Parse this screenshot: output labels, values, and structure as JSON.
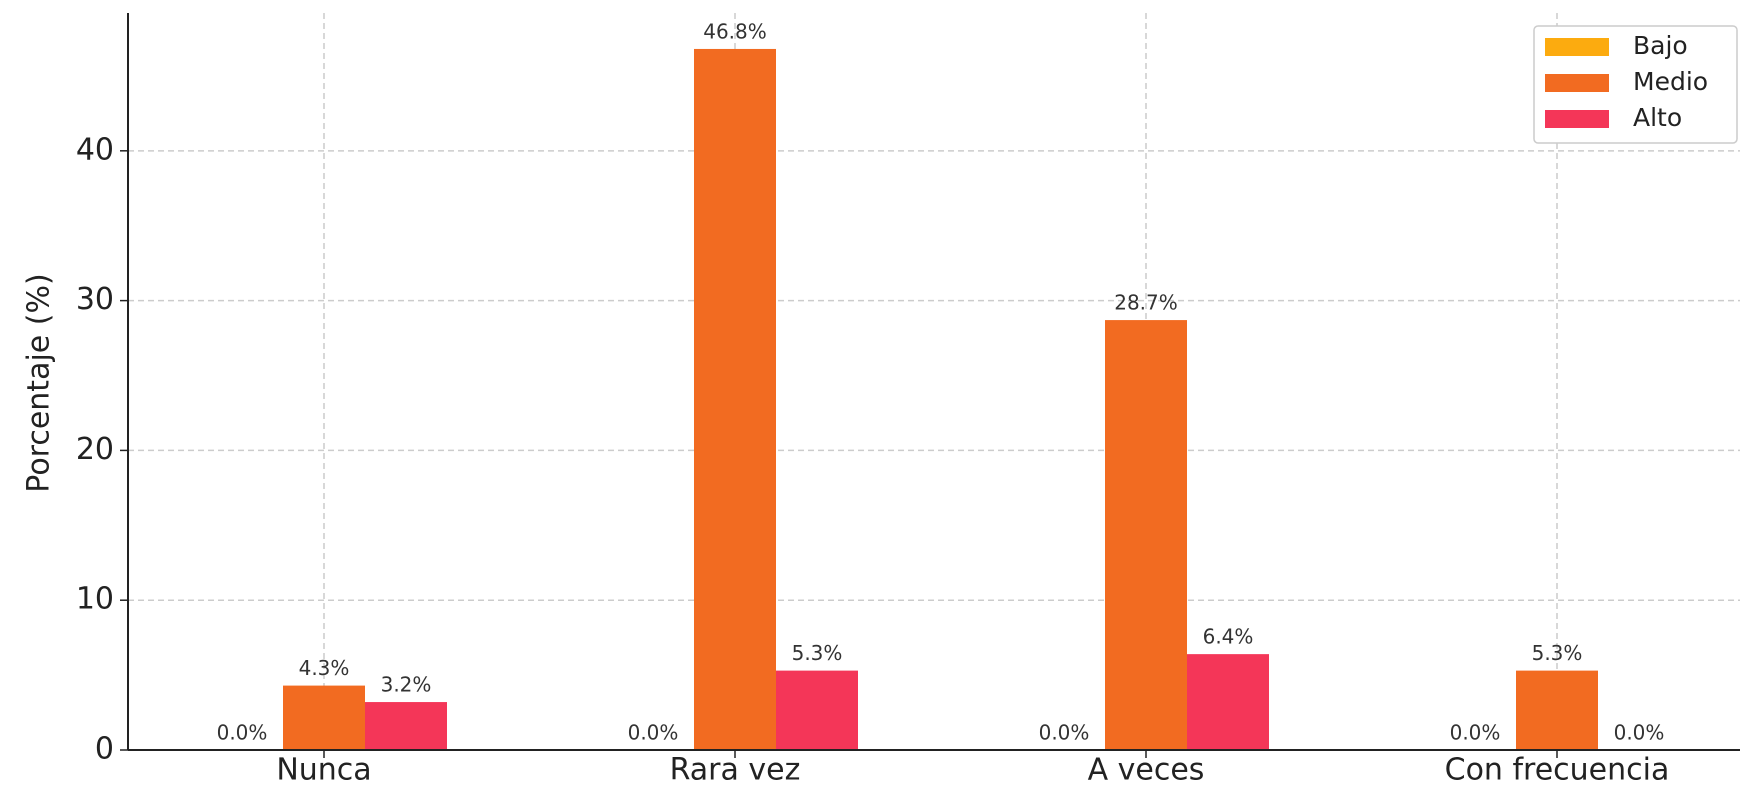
{
  "chart_data": {
    "type": "bar",
    "y_label": "Porcentaje (%)",
    "categories": [
      "Nunca",
      "Rara vez",
      "A veces",
      "Con frecuencia"
    ],
    "series": [
      {
        "name": "Bajo",
        "color": "#fcab0f",
        "values": [
          0.0,
          0.0,
          0.0,
          0.0
        ],
        "value_labels": [
          "0.0%",
          "0.0%",
          "0.0%",
          "0.0%"
        ]
      },
      {
        "name": "Medio",
        "color": "#f26b21",
        "values": [
          4.3,
          46.8,
          28.7,
          5.3
        ],
        "value_labels": [
          "4.3%",
          "46.8%",
          "28.7%",
          "5.3%"
        ]
      },
      {
        "name": "Alto",
        "color": "#f43658",
        "values": [
          3.2,
          5.3,
          6.4,
          0.0
        ],
        "value_labels": [
          "3.2%",
          "5.3%",
          "6.4%",
          "0.0%"
        ]
      }
    ],
    "ylim": [
      0,
      49.2
    ],
    "yticks": [
      0,
      10,
      20,
      30,
      40
    ],
    "grid": true,
    "legend": "upper right"
  }
}
